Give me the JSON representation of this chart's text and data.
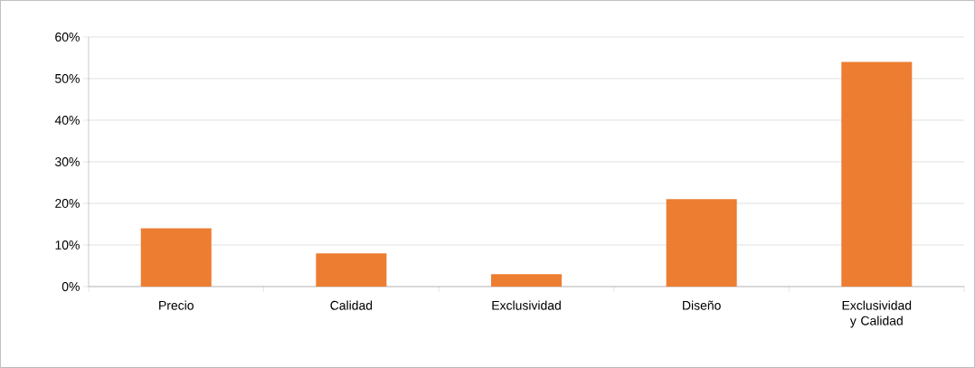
{
  "chart_data": {
    "type": "bar",
    "categories": [
      "Precio",
      "Calidad",
      "Exclusividad",
      "Diseño",
      "Exclusividad y Calidad"
    ],
    "values": [
      14,
      8,
      3,
      21,
      54
    ],
    "color": "#ed7d31",
    "ylim": [
      0,
      60
    ],
    "yticks": [
      {
        "value": 0,
        "label": "0%"
      },
      {
        "value": 10,
        "label": "10%"
      },
      {
        "value": 20,
        "label": "20%"
      },
      {
        "value": 30,
        "label": "30%"
      },
      {
        "value": 40,
        "label": "40%"
      },
      {
        "value": 50,
        "label": "50%"
      },
      {
        "value": 60,
        "label": "60%"
      }
    ],
    "grid": "y"
  }
}
